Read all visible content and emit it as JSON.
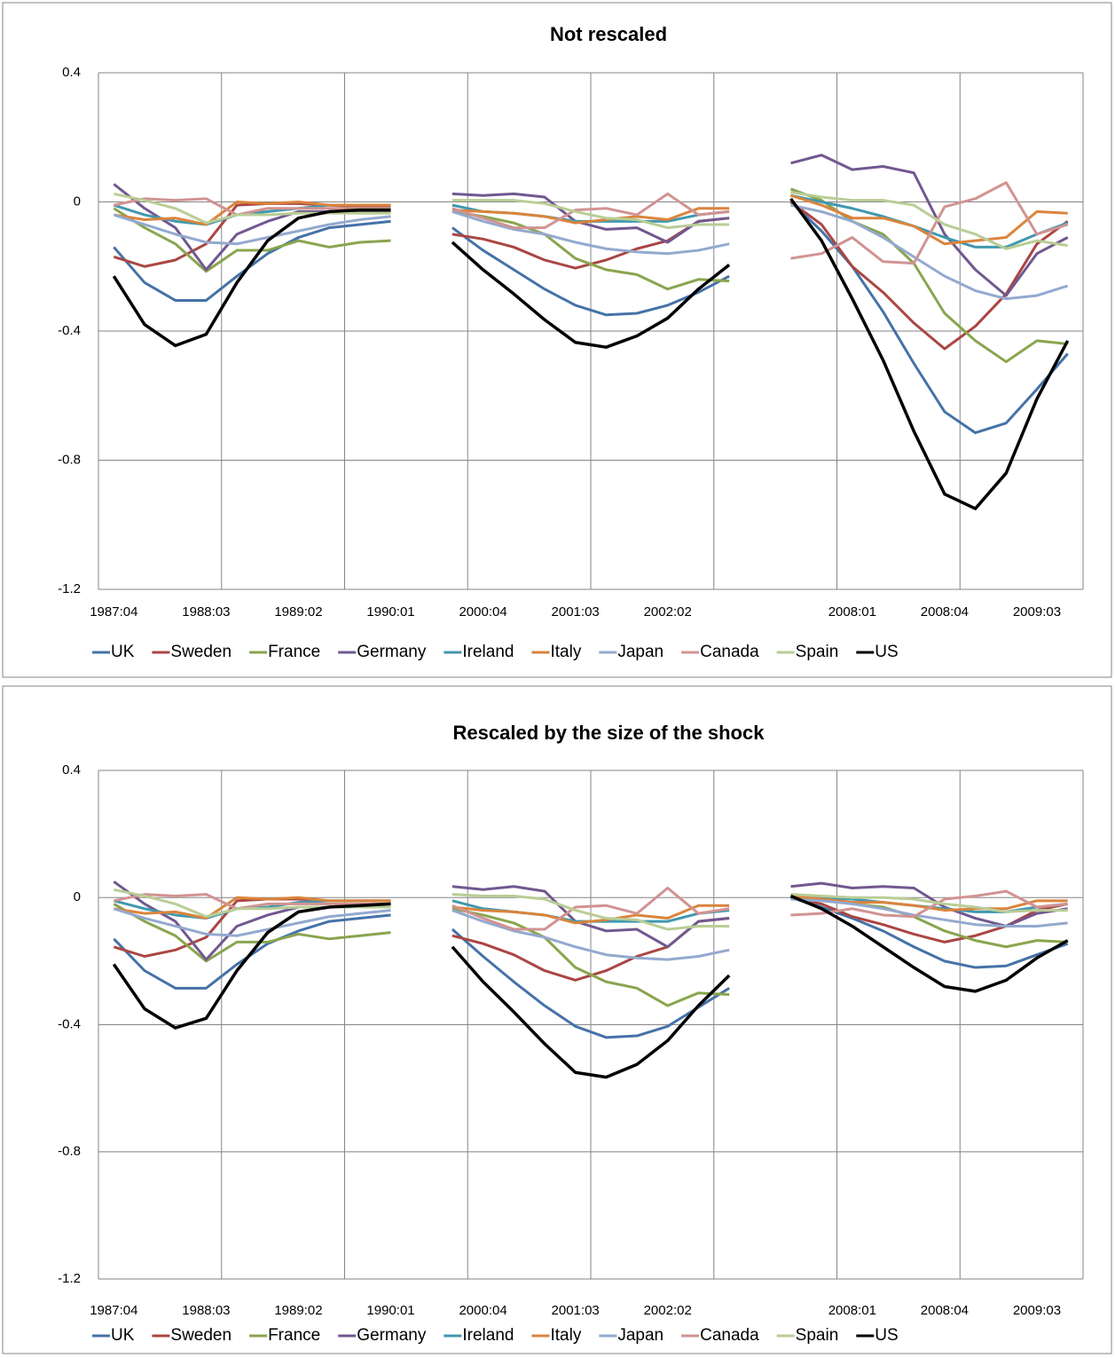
{
  "chart_data": [
    {
      "type": "line",
      "title": "Not rescaled",
      "categories": [
        "1987:04",
        null,
        null,
        "1988:03",
        null,
        null,
        "1989:02",
        null,
        null,
        "1990:01",
        null,
        null,
        "2000:04",
        null,
        null,
        "2001:03",
        null,
        null,
        "2002:02",
        null,
        null,
        null,
        null,
        null,
        "2008:01",
        null,
        null,
        "2008:04",
        null,
        null,
        "2009:03",
        null
      ],
      "ylim": [
        -1.2,
        0.4
      ],
      "yticks": [
        -1.2,
        -0.8,
        -0.4,
        0,
        0.4
      ],
      "grid": true,
      "legend": "bottom",
      "series": [
        {
          "name": "UK",
          "color": "#4572a7",
          "values": [
            -0.14,
            -0.25,
            -0.305,
            -0.305,
            -0.23,
            -0.16,
            -0.11,
            -0.08,
            -0.07,
            -0.06,
            null,
            -0.08,
            -0.15,
            -0.21,
            -0.27,
            -0.32,
            -0.35,
            -0.345,
            -0.32,
            -0.28,
            -0.23,
            null,
            0.0,
            -0.09,
            -0.2,
            -0.34,
            -0.5,
            -0.65,
            -0.715,
            -0.685,
            -0.58,
            -0.47
          ]
        },
        {
          "name": "Sweden",
          "color": "#aa4643",
          "values": [
            -0.17,
            -0.2,
            -0.18,
            -0.13,
            -0.01,
            -0.005,
            -0.005,
            -0.01,
            -0.015,
            -0.015,
            null,
            -0.1,
            -0.115,
            -0.14,
            -0.18,
            -0.205,
            -0.18,
            -0.145,
            -0.12,
            -0.06,
            -0.05,
            null,
            0.0,
            -0.07,
            -0.2,
            -0.28,
            -0.375,
            -0.455,
            -0.385,
            -0.285,
            -0.13,
            -0.06
          ]
        },
        {
          "name": "France",
          "color": "#89a54e",
          "values": [
            -0.02,
            -0.08,
            -0.13,
            -0.215,
            -0.15,
            -0.15,
            -0.12,
            -0.14,
            -0.125,
            -0.12,
            null,
            -0.03,
            -0.045,
            -0.065,
            -0.1,
            -0.175,
            -0.21,
            -0.225,
            -0.27,
            -0.24,
            -0.245,
            null,
            0.04,
            0.005,
            -0.06,
            -0.1,
            -0.19,
            -0.345,
            -0.43,
            -0.495,
            -0.43,
            -0.44
          ]
        },
        {
          "name": "Germany",
          "color": "#71588f",
          "values": [
            0.055,
            -0.02,
            -0.08,
            -0.21,
            -0.1,
            -0.06,
            -0.03,
            -0.03,
            -0.03,
            -0.03,
            null,
            0.025,
            0.02,
            0.025,
            0.015,
            -0.06,
            -0.085,
            -0.08,
            -0.125,
            -0.06,
            -0.05,
            null,
            0.12,
            0.145,
            0.1,
            0.11,
            0.09,
            -0.1,
            -0.21,
            -0.29,
            -0.16,
            -0.11
          ]
        },
        {
          "name": "Ireland",
          "color": "#4198af",
          "values": [
            -0.01,
            -0.04,
            -0.06,
            -0.07,
            -0.04,
            -0.03,
            -0.02,
            -0.01,
            -0.01,
            -0.01,
            null,
            -0.01,
            -0.03,
            -0.035,
            -0.045,
            -0.06,
            -0.06,
            -0.06,
            -0.06,
            -0.04,
            -0.03,
            null,
            0.02,
            0.0,
            -0.02,
            -0.045,
            -0.075,
            -0.11,
            -0.14,
            -0.14,
            -0.1,
            -0.065
          ]
        },
        {
          "name": "Italy",
          "color": "#db843d",
          "values": [
            -0.04,
            -0.055,
            -0.05,
            -0.07,
            0.0,
            -0.005,
            0.0,
            -0.01,
            -0.01,
            -0.01,
            null,
            -0.025,
            -0.03,
            -0.035,
            -0.045,
            -0.065,
            -0.055,
            -0.045,
            -0.055,
            -0.02,
            -0.02,
            null,
            0.02,
            -0.01,
            -0.05,
            -0.05,
            -0.075,
            -0.13,
            -0.12,
            -0.11,
            -0.03,
            -0.035
          ]
        },
        {
          "name": "Japan",
          "color": "#93a9cf",
          "values": [
            -0.04,
            -0.07,
            -0.1,
            -0.125,
            -0.13,
            -0.11,
            -0.09,
            -0.07,
            -0.055,
            -0.045,
            null,
            -0.03,
            -0.06,
            -0.085,
            -0.1,
            -0.125,
            -0.145,
            -0.155,
            -0.16,
            -0.15,
            -0.13,
            null,
            -0.01,
            -0.03,
            -0.06,
            -0.11,
            -0.17,
            -0.23,
            -0.275,
            -0.3,
            -0.29,
            -0.26
          ]
        },
        {
          "name": "Canada",
          "color": "#d19392",
          "values": [
            -0.01,
            0.01,
            0.005,
            0.01,
            -0.04,
            -0.02,
            -0.02,
            -0.02,
            -0.02,
            -0.02,
            null,
            -0.02,
            -0.05,
            -0.08,
            -0.08,
            -0.025,
            -0.02,
            -0.04,
            0.025,
            -0.04,
            -0.03,
            null,
            -0.175,
            -0.16,
            -0.11,
            -0.185,
            -0.19,
            -0.015,
            0.01,
            0.06,
            -0.1,
            -0.07
          ]
        },
        {
          "name": "Spain",
          "color": "#b9cd96",
          "values": [
            0.025,
            0.005,
            -0.02,
            -0.065,
            -0.04,
            -0.04,
            -0.035,
            -0.035,
            -0.035,
            -0.035,
            null,
            0.005,
            0.005,
            0.005,
            -0.005,
            -0.03,
            -0.05,
            -0.055,
            -0.08,
            -0.07,
            -0.07,
            null,
            0.03,
            0.015,
            0.005,
            0.005,
            -0.01,
            -0.07,
            -0.1,
            -0.145,
            -0.12,
            -0.135
          ]
        },
        {
          "name": "US",
          "color": "#000000",
          "values": [
            -0.23,
            -0.38,
            -0.445,
            -0.41,
            -0.25,
            -0.12,
            -0.05,
            -0.03,
            -0.025,
            -0.025,
            null,
            -0.125,
            -0.21,
            -0.285,
            -0.365,
            -0.435,
            -0.45,
            -0.415,
            -0.36,
            -0.27,
            -0.195,
            null,
            0.01,
            -0.12,
            -0.3,
            -0.49,
            -0.71,
            -0.905,
            -0.95,
            -0.84,
            -0.61,
            -0.43
          ]
        }
      ]
    },
    {
      "type": "line",
      "title": "Rescaled by the size of the shock",
      "categories": [
        "1987:04",
        null,
        null,
        "1988:03",
        null,
        null,
        "1989:02",
        null,
        null,
        "1990:01",
        null,
        null,
        "2000:04",
        null,
        null,
        "2001:03",
        null,
        null,
        "2002:02",
        null,
        null,
        null,
        null,
        null,
        "2008:01",
        null,
        null,
        "2008:04",
        null,
        null,
        "2009:03",
        null
      ],
      "ylim": [
        -1.2,
        0.4
      ],
      "yticks": [
        -1.2,
        -0.8,
        -0.4,
        0,
        0.4
      ],
      "grid": true,
      "legend": "bottom",
      "series": [
        {
          "name": "UK",
          "color": "#4572a7",
          "values": [
            -0.13,
            -0.23,
            -0.285,
            -0.285,
            -0.21,
            -0.145,
            -0.105,
            -0.075,
            -0.065,
            -0.055,
            null,
            -0.1,
            -0.185,
            -0.265,
            -0.34,
            -0.405,
            -0.44,
            -0.435,
            -0.405,
            -0.345,
            -0.285,
            null,
            0.0,
            -0.03,
            -0.065,
            -0.105,
            -0.155,
            -0.2,
            -0.22,
            -0.215,
            -0.18,
            -0.145
          ]
        },
        {
          "name": "Sweden",
          "color": "#aa4643",
          "values": [
            -0.155,
            -0.185,
            -0.165,
            -0.125,
            -0.01,
            -0.005,
            -0.005,
            -0.01,
            -0.01,
            -0.01,
            null,
            -0.12,
            -0.145,
            -0.18,
            -0.23,
            -0.26,
            -0.23,
            -0.185,
            -0.155,
            -0.075,
            -0.065,
            null,
            0.0,
            -0.02,
            -0.06,
            -0.085,
            -0.115,
            -0.14,
            -0.12,
            -0.09,
            -0.04,
            -0.02
          ]
        },
        {
          "name": "France",
          "color": "#89a54e",
          "values": [
            -0.02,
            -0.075,
            -0.12,
            -0.2,
            -0.14,
            -0.14,
            -0.115,
            -0.13,
            -0.12,
            -0.11,
            null,
            -0.035,
            -0.055,
            -0.08,
            -0.125,
            -0.22,
            -0.265,
            -0.285,
            -0.34,
            -0.3,
            -0.305,
            null,
            0.01,
            0.0,
            -0.02,
            -0.03,
            -0.06,
            -0.105,
            -0.135,
            -0.155,
            -0.135,
            -0.14
          ]
        },
        {
          "name": "Germany",
          "color": "#71588f",
          "values": [
            0.05,
            -0.02,
            -0.075,
            -0.195,
            -0.09,
            -0.055,
            -0.03,
            -0.03,
            -0.03,
            -0.03,
            null,
            0.035,
            0.025,
            0.035,
            0.02,
            -0.075,
            -0.105,
            -0.1,
            -0.155,
            -0.075,
            -0.065,
            null,
            0.035,
            0.045,
            0.03,
            0.035,
            0.03,
            -0.03,
            -0.065,
            -0.09,
            -0.05,
            -0.035
          ]
        },
        {
          "name": "Ireland",
          "color": "#4198af",
          "values": [
            -0.01,
            -0.035,
            -0.055,
            -0.065,
            -0.035,
            -0.03,
            -0.015,
            -0.01,
            -0.01,
            -0.01,
            null,
            -0.01,
            -0.035,
            -0.045,
            -0.055,
            -0.075,
            -0.075,
            -0.075,
            -0.075,
            -0.05,
            -0.04,
            null,
            0.005,
            0.0,
            -0.005,
            -0.015,
            -0.025,
            -0.035,
            -0.045,
            -0.045,
            -0.03,
            -0.02
          ]
        },
        {
          "name": "Italy",
          "color": "#db843d",
          "values": [
            -0.035,
            -0.05,
            -0.045,
            -0.065,
            0.0,
            -0.005,
            0.0,
            -0.01,
            -0.01,
            -0.01,
            null,
            -0.03,
            -0.04,
            -0.045,
            -0.055,
            -0.08,
            -0.07,
            -0.055,
            -0.065,
            -0.025,
            -0.025,
            null,
            0.005,
            -0.005,
            -0.015,
            -0.015,
            -0.025,
            -0.04,
            -0.035,
            -0.035,
            -0.01,
            -0.01
          ]
        },
        {
          "name": "Japan",
          "color": "#93a9cf",
          "values": [
            -0.035,
            -0.065,
            -0.09,
            -0.115,
            -0.12,
            -0.1,
            -0.08,
            -0.06,
            -0.05,
            -0.04,
            null,
            -0.04,
            -0.075,
            -0.105,
            -0.125,
            -0.155,
            -0.18,
            -0.19,
            -0.195,
            -0.185,
            -0.165,
            null,
            -0.005,
            -0.01,
            -0.02,
            -0.035,
            -0.055,
            -0.07,
            -0.085,
            -0.09,
            -0.09,
            -0.08
          ]
        },
        {
          "name": "Canada",
          "color": "#d19392",
          "values": [
            -0.01,
            0.01,
            0.005,
            0.01,
            -0.035,
            -0.02,
            -0.02,
            -0.02,
            -0.02,
            -0.02,
            null,
            -0.025,
            -0.065,
            -0.1,
            -0.1,
            -0.03,
            -0.025,
            -0.05,
            0.03,
            -0.05,
            -0.035,
            null,
            -0.055,
            -0.05,
            -0.035,
            -0.055,
            -0.06,
            -0.005,
            0.005,
            0.02,
            -0.03,
            -0.02
          ]
        },
        {
          "name": "Spain",
          "color": "#b9cd96",
          "values": [
            0.025,
            0.005,
            -0.02,
            -0.06,
            -0.035,
            -0.035,
            -0.03,
            -0.03,
            -0.03,
            -0.03,
            null,
            0.01,
            0.005,
            0.005,
            -0.005,
            -0.04,
            -0.065,
            -0.07,
            -0.1,
            -0.09,
            -0.09,
            null,
            0.01,
            0.005,
            0.0,
            0.0,
            -0.005,
            -0.02,
            -0.03,
            -0.045,
            -0.04,
            -0.04
          ]
        },
        {
          "name": "US",
          "color": "#000000",
          "values": [
            -0.21,
            -0.35,
            -0.41,
            -0.38,
            -0.23,
            -0.11,
            -0.045,
            -0.03,
            -0.025,
            -0.02,
            null,
            -0.155,
            -0.265,
            -0.36,
            -0.46,
            -0.55,
            -0.565,
            -0.525,
            -0.45,
            -0.34,
            -0.245,
            null,
            0.005,
            -0.035,
            -0.09,
            -0.155,
            -0.22,
            -0.28,
            -0.295,
            -0.26,
            -0.19,
            -0.135
          ]
        }
      ]
    }
  ]
}
